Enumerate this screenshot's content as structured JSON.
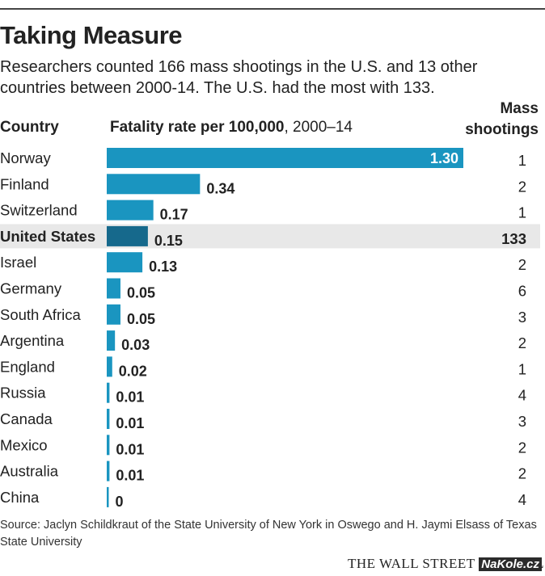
{
  "header": {
    "title": "Taking Measure",
    "subtitle": "Researchers counted 166 mass shootings in the U.S. and 13 other countries between 2000-14. The U.S. had the most with 133."
  },
  "columns": {
    "country": "Country",
    "rate_bold": "Fatality rate per 100,000",
    "rate_period": ", 2000–14",
    "mass_line1": "Mass",
    "mass_line2": "shootings"
  },
  "footer": {
    "source": "Source: Jaclyn Schildkraut of the State University of New York in Oswego and H. Jaymi Elsass of Texas State University",
    "publisher": "THE WALL STREET JOURNAL.",
    "watermark": "NaKole.cz"
  },
  "colors": {
    "bar": "#1a95c0",
    "bar_highlight": "#16698c",
    "row_highlight": "#e8e8e8"
  },
  "chart_data": {
    "type": "bar",
    "orientation": "horizontal",
    "title": "Fatality rate per 100,000, 2000–14",
    "highlight": "United States",
    "categories": [
      "Norway",
      "Finland",
      "Switzerland",
      "United States",
      "Israel",
      "Germany",
      "South Africa",
      "Argentina",
      "England",
      "Russia",
      "Canada",
      "Mexico",
      "Australia",
      "China"
    ],
    "values": [
      1.3,
      0.34,
      0.17,
      0.15,
      0.13,
      0.05,
      0.05,
      0.03,
      0.02,
      0.01,
      0.01,
      0.01,
      0.01,
      0
    ],
    "value_labels": [
      "1.30",
      "0.34",
      "0.17",
      "0.15",
      "0.13",
      "0.05",
      "0.05",
      "0.03",
      "0.02",
      "0.01",
      "0.01",
      "0.01",
      "0.01",
      "0"
    ],
    "mass_shootings": [
      1,
      2,
      1,
      133,
      2,
      6,
      3,
      2,
      1,
      4,
      3,
      2,
      2,
      4
    ],
    "xlim": [
      0,
      1.3
    ],
    "grid": false,
    "legend": "none"
  }
}
